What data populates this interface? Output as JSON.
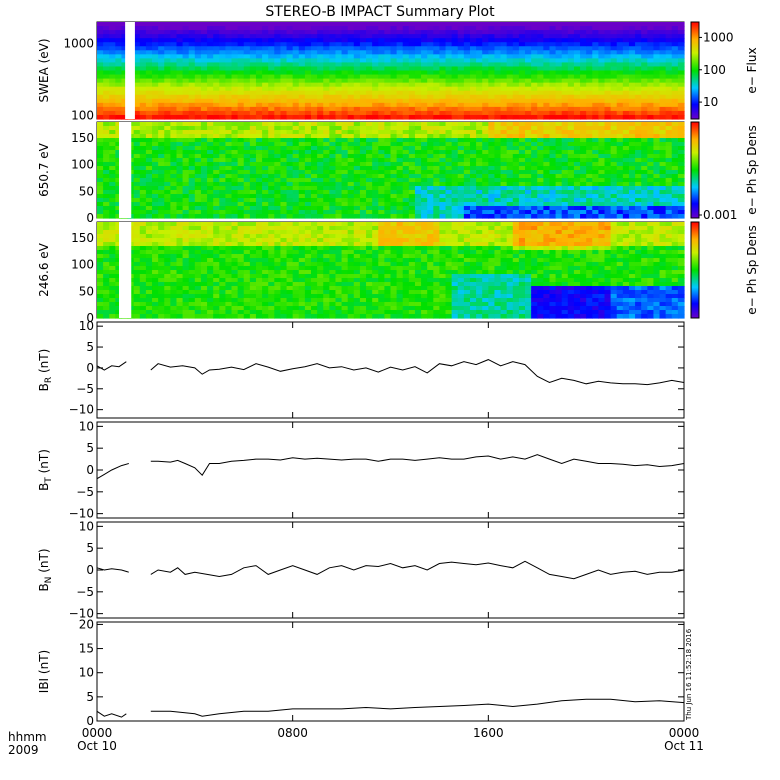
{
  "title": "STEREO-B IMPACT Summary Plot",
  "stamp": "Thu Jun 16 11:52:18 2016",
  "x_axis": {
    "row1_label": "hhmm",
    "row2_label": "2009",
    "ticks": [
      {
        "hour": 0,
        "line1": "0000",
        "line2": "Oct 10"
      },
      {
        "hour": 8,
        "line1": "0800",
        "line2": ""
      },
      {
        "hour": 16,
        "line1": "1600",
        "line2": ""
      },
      {
        "hour": 24,
        "line1": "0000",
        "line2": "Oct 11"
      }
    ],
    "range_hours": [
      0,
      24
    ]
  },
  "chart_data": [
    {
      "type": "heatmap",
      "name": "swea",
      "ylabel": "SWEA (eV)",
      "yscale": "log",
      "ylim": [
        90,
        2000
      ],
      "y_ticks": [
        {
          "v": 100,
          "label": "100"
        },
        {
          "v": 1000,
          "label": "1000"
        }
      ],
      "colorbar": {
        "label": "e− Flux",
        "scale": "log",
        "range": [
          3,
          3000
        ],
        "ticks": [
          {
            "v": 10,
            "label": "10"
          },
          {
            "v": 100,
            "label": "100"
          },
          {
            "v": 1000,
            "label": "1000"
          }
        ]
      },
      "data_gap_hours": [
        [
          1.15,
          1.55
        ]
      ]
    },
    {
      "type": "heatmap",
      "name": "pad650",
      "ylabel": "650.7 eV",
      "ylim": [
        0,
        180
      ],
      "y_ticks": [
        {
          "v": 0,
          "label": "0"
        },
        {
          "v": 50,
          "label": "50"
        },
        {
          "v": 100,
          "label": "100"
        },
        {
          "v": 150,
          "label": "150"
        }
      ],
      "colorbar": {
        "label": "e− Ph Sp Dens",
        "ticks": [
          {
            "v": 0,
            "label": "0.001"
          }
        ]
      },
      "data_gap_hours": [
        [
          0.9,
          1.4
        ]
      ]
    },
    {
      "type": "heatmap",
      "name": "pad246",
      "ylabel": "246.6 eV",
      "ylim": [
        0,
        180
      ],
      "y_ticks": [
        {
          "v": 0,
          "label": "0"
        },
        {
          "v": 50,
          "label": "50"
        },
        {
          "v": 100,
          "label": "100"
        },
        {
          "v": 150,
          "label": "150"
        }
      ],
      "colorbar": {
        "label": "e− Ph Sp Dens",
        "ticks": []
      },
      "data_gap_hours": [
        [
          0.9,
          1.4
        ]
      ]
    },
    {
      "type": "line",
      "name": "br",
      "ylabel_main": "B",
      "ylabel_sub": "R",
      "ylabel_unit": " (nT)",
      "ylim": [
        -12,
        11
      ],
      "y_ticks": [
        {
          "v": -10,
          "label": "−10"
        },
        {
          "v": -5,
          "label": "−5"
        },
        {
          "v": 0,
          "label": "0"
        },
        {
          "v": 5,
          "label": "5"
        },
        {
          "v": 10,
          "label": "10"
        }
      ],
      "segments": [
        {
          "x": [
            0,
            0.3,
            0.6,
            0.9,
            1.2
          ],
          "y": [
            0.5,
            -0.5,
            0.5,
            0.3,
            1.5
          ]
        },
        {
          "x": [
            2.2,
            2.5,
            3,
            3.5,
            4,
            4.3,
            4.6,
            5,
            5.5,
            6,
            6.5,
            7,
            7.5,
            8,
            8.5,
            9,
            9.5,
            10,
            10.5,
            11,
            11.5,
            12,
            12.5,
            13,
            13.5,
            14,
            14.5,
            15,
            15.5,
            16,
            16.5,
            17,
            17.5,
            18,
            18.5,
            19,
            19.5,
            20,
            20.5,
            21,
            21.5,
            22,
            22.5,
            23,
            23.5,
            24
          ],
          "y": [
            -0.5,
            1.0,
            0.2,
            0.5,
            0.0,
            -1.5,
            -0.5,
            -0.3,
            0.2,
            -0.4,
            1.0,
            0.2,
            -0.8,
            -0.2,
            0.3,
            1.0,
            0.0,
            0.3,
            -0.5,
            0.0,
            -1.0,
            0.2,
            -0.5,
            0.3,
            -1.2,
            1.0,
            0.5,
            1.5,
            0.8,
            2.0,
            0.5,
            1.5,
            0.8,
            -2.0,
            -3.5,
            -2.5,
            -3.0,
            -3.8,
            -3.2,
            -3.6,
            -3.8,
            -3.8,
            -4.0,
            -3.6,
            -3.0,
            -3.5
          ]
        }
      ]
    },
    {
      "type": "line",
      "name": "bt",
      "ylabel_main": "B",
      "ylabel_sub": "T",
      "ylabel_unit": " (nT)",
      "ylim": [
        -11,
        11
      ],
      "y_ticks": [
        {
          "v": -10,
          "label": "−10"
        },
        {
          "v": -5,
          "label": "−5"
        },
        {
          "v": 0,
          "label": "0"
        },
        {
          "v": 5,
          "label": "5"
        },
        {
          "v": 10,
          "label": "10"
        }
      ],
      "segments": [
        {
          "x": [
            0,
            0.3,
            0.6,
            1,
            1.3
          ],
          "y": [
            -2.0,
            -1.0,
            0.0,
            1.0,
            1.5
          ]
        },
        {
          "x": [
            2.2,
            2.5,
            3,
            3.3,
            3.6,
            4,
            4.3,
            4.6,
            5,
            5.5,
            6,
            6.5,
            7,
            7.5,
            8,
            8.5,
            9,
            9.5,
            10,
            10.5,
            11,
            11.5,
            12,
            12.5,
            13,
            13.5,
            14,
            14.5,
            15,
            15.5,
            16,
            16.5,
            17,
            17.5,
            18,
            18.5,
            19,
            19.5,
            20,
            20.5,
            21,
            21.5,
            22,
            22.5,
            23,
            23.5,
            24
          ],
          "y": [
            2.0,
            2.0,
            1.8,
            2.2,
            1.5,
            0.5,
            -1.2,
            1.5,
            1.5,
            2.0,
            2.2,
            2.5,
            2.5,
            2.3,
            2.8,
            2.5,
            2.7,
            2.5,
            2.3,
            2.5,
            2.5,
            2.0,
            2.5,
            2.5,
            2.2,
            2.5,
            2.8,
            2.5,
            2.5,
            3.0,
            3.2,
            2.5,
            3.0,
            2.5,
            3.5,
            2.5,
            1.5,
            2.5,
            2.0,
            1.5,
            1.5,
            1.3,
            1.0,
            1.2,
            0.8,
            1.0,
            1.5
          ]
        }
      ]
    },
    {
      "type": "line",
      "name": "bn",
      "ylabel_main": "B",
      "ylabel_sub": "N",
      "ylabel_unit": " (nT)",
      "ylim": [
        -11,
        11
      ],
      "y_ticks": [
        {
          "v": -10,
          "label": "−10"
        },
        {
          "v": -5,
          "label": "−5"
        },
        {
          "v": 0,
          "label": "0"
        },
        {
          "v": 5,
          "label": "5"
        },
        {
          "v": 10,
          "label": "10"
        }
      ],
      "segments": [
        {
          "x": [
            0,
            0.3,
            0.6,
            1,
            1.3
          ],
          "y": [
            0.5,
            0.0,
            0.3,
            0.0,
            -0.5
          ]
        },
        {
          "x": [
            2.2,
            2.5,
            3,
            3.3,
            3.6,
            4,
            4.5,
            5,
            5.5,
            6,
            6.5,
            7,
            7.5,
            8,
            8.5,
            9,
            9.5,
            10,
            10.5,
            11,
            11.5,
            12,
            12.5,
            13,
            13.5,
            14,
            14.5,
            15,
            15.5,
            16,
            16.5,
            17,
            17.5,
            18,
            18.5,
            19,
            19.5,
            20,
            20.5,
            21,
            21.5,
            22,
            22.5,
            23,
            23.5,
            24
          ],
          "y": [
            -1.0,
            0.0,
            -0.5,
            0.5,
            -1.0,
            -0.5,
            -1.0,
            -1.5,
            -1.0,
            0.5,
            1.0,
            -1.0,
            0.0,
            1.0,
            0.0,
            -1.0,
            0.5,
            1.0,
            0.0,
            1.0,
            0.8,
            1.5,
            0.5,
            1.0,
            0.0,
            1.5,
            1.8,
            1.5,
            1.2,
            1.6,
            1.0,
            0.5,
            2.0,
            0.5,
            -1.0,
            -1.5,
            -2.0,
            -1.0,
            0.0,
            -1.0,
            -0.5,
            -0.3,
            -1.0,
            -0.5,
            -0.5,
            0.0
          ]
        }
      ]
    },
    {
      "type": "line",
      "name": "bmag",
      "ylabel_main": "IBI",
      "ylabel_sub": "",
      "ylabel_unit": " (nT)",
      "ylim": [
        0,
        20.5
      ],
      "y_ticks": [
        {
          "v": 0,
          "label": "0"
        },
        {
          "v": 5,
          "label": "5"
        },
        {
          "v": 10,
          "label": "10"
        },
        {
          "v": 15,
          "label": "15"
        },
        {
          "v": 20,
          "label": "20"
        }
      ],
      "segments": [
        {
          "x": [
            0,
            0.3,
            0.6,
            1,
            1.2
          ],
          "y": [
            2.0,
            1.0,
            1.5,
            0.8,
            1.5
          ]
        },
        {
          "x": [
            2.2,
            3,
            4,
            4.3,
            5,
            6,
            7,
            8,
            9,
            10,
            11,
            12,
            13,
            14,
            15,
            16,
            17,
            18,
            19,
            20,
            21,
            22,
            23,
            24
          ],
          "y": [
            2.0,
            2.0,
            1.5,
            1.0,
            1.5,
            2.0,
            2.0,
            2.5,
            2.5,
            2.5,
            2.8,
            2.5,
            2.8,
            3.0,
            3.2,
            3.5,
            3.0,
            3.5,
            4.2,
            4.5,
            4.5,
            4.0,
            4.2,
            3.8
          ]
        }
      ]
    }
  ]
}
